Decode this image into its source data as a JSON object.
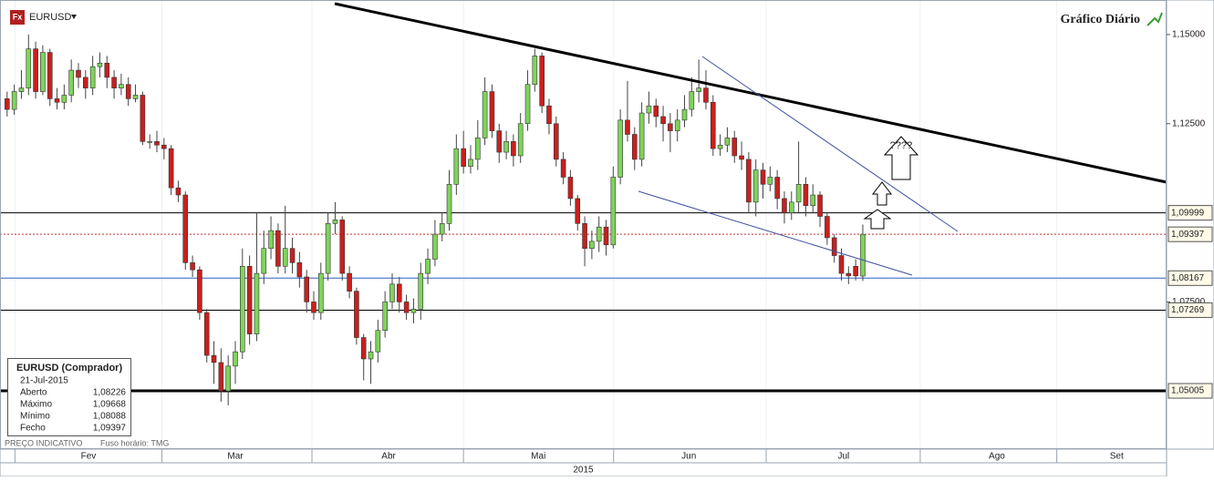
{
  "header": {
    "icon": "Fx",
    "symbol": "EURUSD",
    "title": "Gráfico Diário"
  },
  "info": {
    "title": "EURUSD (Comprador)",
    "date": "21-Jul-2015",
    "rows": [
      [
        "Aberto",
        "1,08226"
      ],
      [
        "Máximo",
        "1,09668"
      ],
      [
        "Mínimo",
        "1,08088"
      ],
      [
        "Fecho",
        "1,09397"
      ]
    ]
  },
  "footer": {
    "note": "PREÇO INDICATIVO",
    "timezone": "Fuso horário: TMG"
  },
  "annotation": "????",
  "chart_data": {
    "type": "candlestick",
    "xlabel": "2015",
    "xlim": [
      -1,
      162.6
    ],
    "ylim": [
      1.0337,
      1.1597
    ],
    "xticks": [
      {
        "value": 11.4,
        "label": "Fev"
      },
      {
        "value": 32,
        "label": "Mar"
      },
      {
        "value": 53.5,
        "label": "Abr"
      },
      {
        "value": 74.5,
        "label": "Mai"
      },
      {
        "value": 95.6,
        "label": "Jun"
      },
      {
        "value": 117.3,
        "label": "Jul"
      },
      {
        "value": 138.8,
        "label": "Ago"
      },
      {
        "value": 155.6,
        "label": "Set"
      }
    ],
    "yticks": [
      {
        "value": 1.075,
        "label": "1,07500"
      },
      {
        "value": 1.125,
        "label": "1,12500"
      },
      {
        "value": 1.15,
        "label": "1,15000"
      }
    ],
    "levels": [
      {
        "value": 1.09999,
        "label": "1,09999",
        "color": "#000000"
      },
      {
        "value": 1.09397,
        "label": "1,09397",
        "color": "#c03030"
      },
      {
        "value": 1.08167,
        "label": "1,08167",
        "color": "#3060c0"
      },
      {
        "value": 1.07269,
        "label": "1,07269",
        "color": "#000000"
      },
      {
        "value": 1.05005,
        "label": "1,05005",
        "color": "#000000"
      }
    ],
    "up_color": "#7fd45a",
    "down_color": "#c8201e",
    "series": [
      {
        "name": "EURUSD",
        "x": [
          0,
          1,
          2,
          3,
          4,
          5,
          6,
          7,
          8,
          9,
          10,
          11,
          12,
          13,
          14,
          15,
          16,
          17,
          18,
          19,
          20,
          21,
          22,
          23,
          24,
          25,
          26,
          27,
          28,
          29,
          30,
          31,
          32,
          33,
          34,
          35,
          36,
          37,
          38,
          39,
          40,
          41,
          42,
          43,
          44,
          45,
          46,
          47,
          48,
          49,
          50,
          51,
          52,
          53,
          54,
          55,
          56,
          57,
          58,
          59,
          60,
          61,
          62,
          63,
          64,
          65,
          66,
          67,
          68,
          69,
          70,
          71,
          72,
          73,
          74,
          75,
          76,
          77,
          78,
          79,
          80,
          81,
          82,
          83,
          84,
          85,
          86,
          87,
          88,
          89,
          90,
          91,
          92,
          93,
          94,
          95,
          96,
          97,
          98,
          99,
          100,
          101,
          102,
          103,
          104,
          105,
          106,
          107,
          108,
          109,
          110,
          111,
          112,
          113,
          114,
          115,
          116,
          117,
          118,
          119,
          120
        ],
        "values": [
          [
            1.132,
            1.134,
            1.127,
            1.129
          ],
          [
            1.129,
            1.136,
            1.1275,
            1.134
          ],
          [
            1.134,
            1.14,
            1.132,
            1.135
          ],
          [
            1.135,
            1.15,
            1.133,
            1.146
          ],
          [
            1.146,
            1.148,
            1.132,
            1.134
          ],
          [
            1.134,
            1.147,
            1.133,
            1.145
          ],
          [
            1.145,
            1.146,
            1.13,
            1.132
          ],
          [
            1.132,
            1.135,
            1.129,
            1.131
          ],
          [
            1.131,
            1.136,
            1.129,
            1.133
          ],
          [
            1.133,
            1.143,
            1.131,
            1.14
          ],
          [
            1.14,
            1.142,
            1.135,
            1.138
          ],
          [
            1.138,
            1.14,
            1.132,
            1.135
          ],
          [
            1.135,
            1.144,
            1.133,
            1.141
          ],
          [
            1.141,
            1.145,
            1.138,
            1.142
          ],
          [
            1.142,
            1.144,
            1.135,
            1.138
          ],
          [
            1.138,
            1.14,
            1.132,
            1.135
          ],
          [
            1.135,
            1.139,
            1.133,
            1.136
          ],
          [
            1.136,
            1.138,
            1.13,
            1.132
          ],
          [
            1.132,
            1.136,
            1.131,
            1.133
          ],
          [
            1.133,
            1.134,
            1.119,
            1.12
          ],
          [
            1.12,
            1.122,
            1.118,
            1.12
          ],
          [
            1.12,
            1.123,
            1.117,
            1.119
          ],
          [
            1.119,
            1.121,
            1.115,
            1.118
          ],
          [
            1.118,
            1.119,
            1.105,
            1.107
          ],
          [
            1.107,
            1.109,
            1.103,
            1.105
          ],
          [
            1.105,
            1.106,
            1.084,
            1.086
          ],
          [
            1.086,
            1.088,
            1.082,
            1.084
          ],
          [
            1.084,
            1.085,
            1.07,
            1.072
          ],
          [
            1.072,
            1.073,
            1.058,
            1.06
          ],
          [
            1.06,
            1.064,
            1.052,
            1.058
          ],
          [
            1.058,
            1.062,
            1.047,
            1.05
          ],
          [
            1.05,
            1.06,
            1.046,
            1.057
          ],
          [
            1.057,
            1.064,
            1.052,
            1.061
          ],
          [
            1.061,
            1.09,
            1.059,
            1.085
          ],
          [
            1.085,
            1.088,
            1.063,
            1.066
          ],
          [
            1.066,
            1.1,
            1.064,
            1.083
          ],
          [
            1.083,
            1.095,
            1.08,
            1.09
          ],
          [
            1.09,
            1.099,
            1.087,
            1.095
          ],
          [
            1.095,
            1.097,
            1.083,
            1.085
          ],
          [
            1.085,
            1.102,
            1.083,
            1.09
          ],
          [
            1.09,
            1.093,
            1.083,
            1.086
          ],
          [
            1.086,
            1.089,
            1.079,
            1.082
          ],
          [
            1.082,
            1.084,
            1.072,
            1.075
          ],
          [
            1.075,
            1.078,
            1.07,
            1.072
          ],
          [
            1.072,
            1.086,
            1.07,
            1.083
          ],
          [
            1.083,
            1.1,
            1.081,
            1.097
          ],
          [
            1.097,
            1.103,
            1.094,
            1.098
          ],
          [
            1.098,
            1.099,
            1.081,
            1.083
          ],
          [
            1.083,
            1.085,
            1.076,
            1.078
          ],
          [
            1.078,
            1.079,
            1.063,
            1.065
          ],
          [
            1.065,
            1.066,
            1.053,
            1.059
          ],
          [
            1.059,
            1.064,
            1.052,
            1.061
          ],
          [
            1.061,
            1.07,
            1.058,
            1.067
          ],
          [
            1.067,
            1.078,
            1.065,
            1.075
          ],
          [
            1.075,
            1.083,
            1.073,
            1.08
          ],
          [
            1.08,
            1.082,
            1.072,
            1.075
          ],
          [
            1.075,
            1.077,
            1.07,
            1.072
          ],
          [
            1.072,
            1.076,
            1.069,
            1.073
          ],
          [
            1.073,
            1.086,
            1.07,
            1.083
          ],
          [
            1.083,
            1.09,
            1.08,
            1.087
          ],
          [
            1.087,
            1.098,
            1.085,
            1.094
          ],
          [
            1.094,
            1.1,
            1.092,
            1.097
          ],
          [
            1.097,
            1.112,
            1.095,
            1.108
          ],
          [
            1.108,
            1.122,
            1.105,
            1.118
          ],
          [
            1.118,
            1.123,
            1.111,
            1.113
          ],
          [
            1.113,
            1.119,
            1.111,
            1.115
          ],
          [
            1.115,
            1.126,
            1.112,
            1.121
          ],
          [
            1.121,
            1.138,
            1.119,
            1.134
          ],
          [
            1.134,
            1.136,
            1.121,
            1.123
          ],
          [
            1.123,
            1.125,
            1.114,
            1.117
          ],
          [
            1.117,
            1.123,
            1.115,
            1.12
          ],
          [
            1.12,
            1.122,
            1.113,
            1.116
          ],
          [
            1.116,
            1.128,
            1.114,
            1.125
          ],
          [
            1.125,
            1.14,
            1.123,
            1.136
          ],
          [
            1.136,
            1.146,
            1.134,
            1.144
          ],
          [
            1.144,
            1.145,
            1.128,
            1.13
          ],
          [
            1.13,
            1.132,
            1.122,
            1.125
          ],
          [
            1.125,
            1.127,
            1.113,
            1.115
          ],
          [
            1.115,
            1.117,
            1.108,
            1.11
          ],
          [
            1.11,
            1.112,
            1.102,
            1.104
          ],
          [
            1.104,
            1.105,
            1.095,
            1.097
          ],
          [
            1.097,
            1.099,
            1.085,
            1.09
          ],
          [
            1.09,
            1.095,
            1.087,
            1.092
          ],
          [
            1.092,
            1.099,
            1.089,
            1.096
          ],
          [
            1.096,
            1.098,
            1.088,
            1.091
          ],
          [
            1.091,
            1.113,
            1.09,
            1.11
          ],
          [
            1.11,
            1.129,
            1.108,
            1.126
          ],
          [
            1.126,
            1.137,
            1.12,
            1.122
          ],
          [
            1.122,
            1.124,
            1.112,
            1.115
          ],
          [
            1.115,
            1.131,
            1.113,
            1.128
          ],
          [
            1.128,
            1.134,
            1.125,
            1.13
          ],
          [
            1.13,
            1.132,
            1.124,
            1.127
          ],
          [
            1.127,
            1.13,
            1.12,
            1.125
          ],
          [
            1.125,
            1.128,
            1.117,
            1.123
          ],
          [
            1.123,
            1.129,
            1.12,
            1.126
          ],
          [
            1.126,
            1.133,
            1.124,
            1.129
          ],
          [
            1.129,
            1.138,
            1.127,
            1.134
          ],
          [
            1.134,
            1.143,
            1.131,
            1.135
          ],
          [
            1.135,
            1.14,
            1.129,
            1.131
          ],
          [
            1.131,
            1.133,
            1.116,
            1.118
          ],
          [
            1.118,
            1.122,
            1.116,
            1.119
          ],
          [
            1.119,
            1.124,
            1.117,
            1.121
          ],
          [
            1.121,
            1.123,
            1.114,
            1.116
          ],
          [
            1.116,
            1.12,
            1.112,
            1.115
          ],
          [
            1.115,
            1.117,
            1.1,
            1.103
          ],
          [
            1.103,
            1.115,
            1.099,
            1.112
          ],
          [
            1.112,
            1.114,
            1.104,
            1.108
          ],
          [
            1.108,
            1.113,
            1.106,
            1.11
          ],
          [
            1.11,
            1.112,
            1.101,
            1.104
          ],
          [
            1.104,
            1.106,
            1.097,
            1.1
          ],
          [
            1.1,
            1.106,
            1.098,
            1.103
          ],
          [
            1.103,
            1.12,
            1.1,
            1.108
          ],
          [
            1.108,
            1.11,
            1.099,
            1.102
          ],
          [
            1.102,
            1.108,
            1.1,
            1.105
          ],
          [
            1.105,
            1.106,
            1.096,
            1.099
          ],
          [
            1.099,
            1.1,
            1.091,
            1.093
          ],
          [
            1.093,
            1.094,
            1.086,
            1.088
          ],
          [
            1.088,
            1.09,
            1.081,
            1.083
          ],
          [
            1.083,
            1.085,
            1.08,
            1.0823
          ],
          [
            1.085,
            1.087,
            1.081,
            1.0823
          ],
          [
            1.08226,
            1.09668,
            1.08088,
            1.09397
          ]
        ]
      }
    ]
  }
}
